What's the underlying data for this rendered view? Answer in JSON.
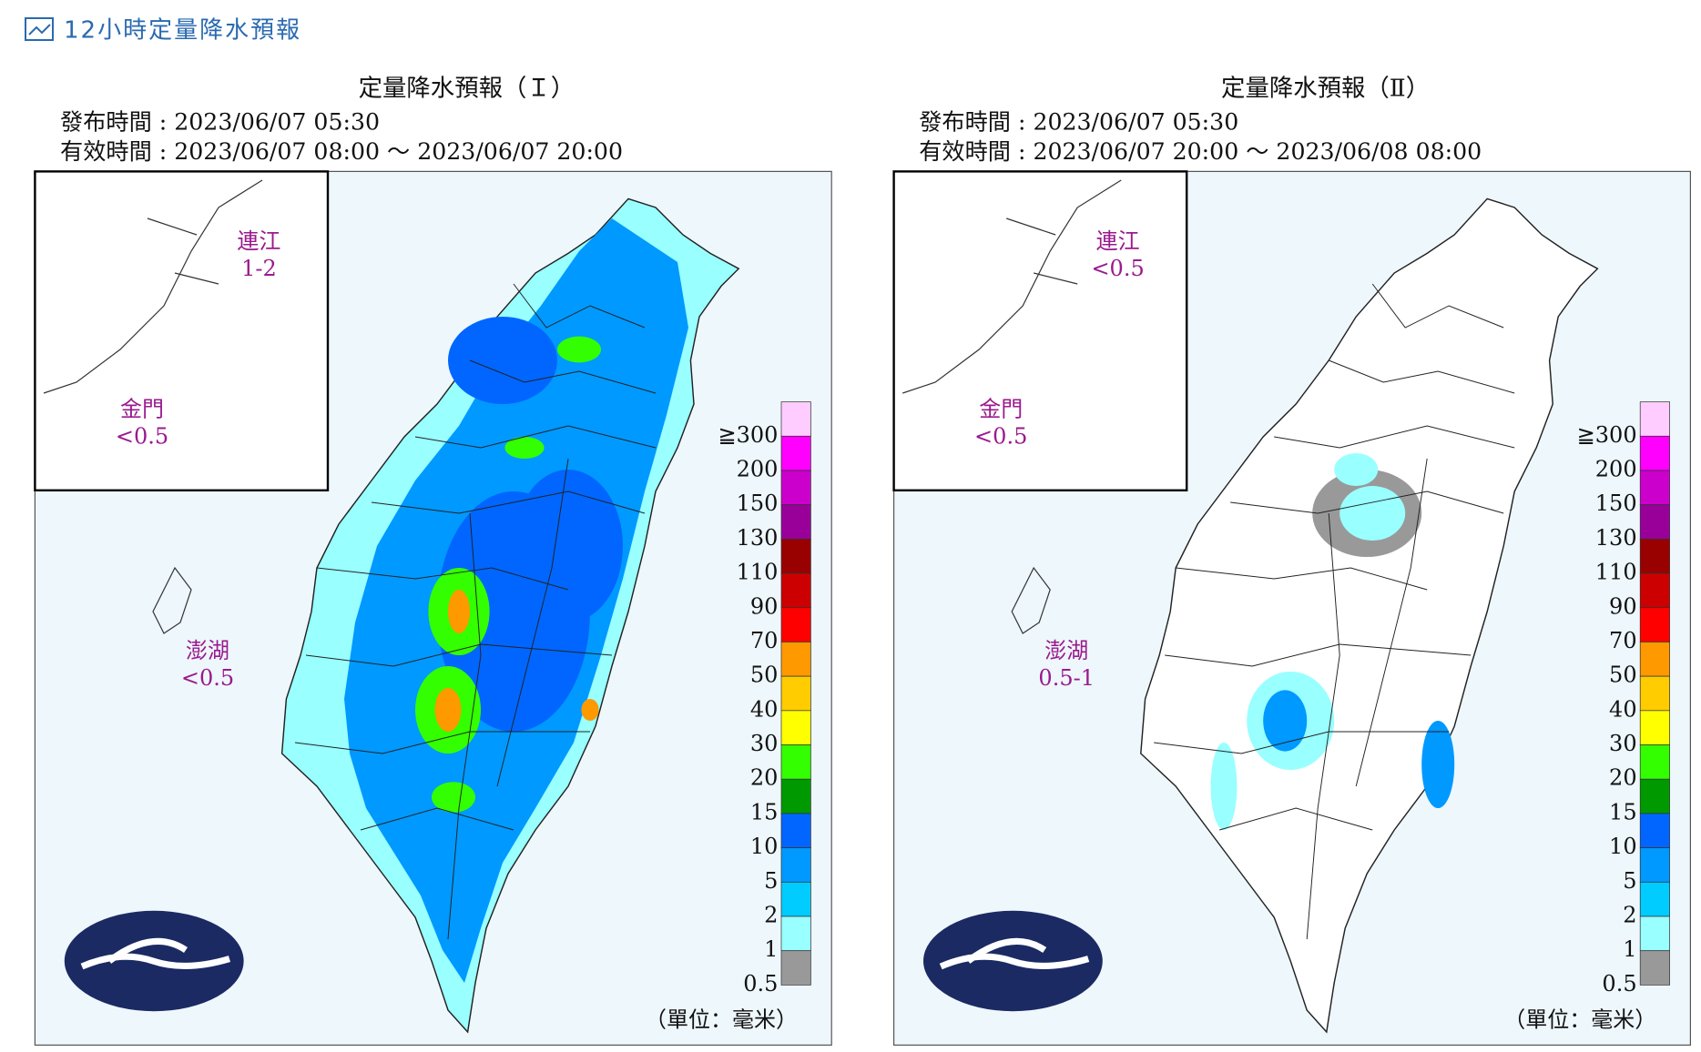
{
  "header": {
    "title": "12小時定量降水預報"
  },
  "legend": [
    {
      "label": "≧300",
      "color": "#ffccff"
    },
    {
      "label": "200",
      "color": "#ff00ff"
    },
    {
      "label": "150",
      "color": "#cc00cc"
    },
    {
      "label": "130",
      "color": "#990099"
    },
    {
      "label": "110",
      "color": "#990000"
    },
    {
      "label": "90",
      "color": "#cc0000"
    },
    {
      "label": "70",
      "color": "#ff0000"
    },
    {
      "label": "50",
      "color": "#ff9900"
    },
    {
      "label": "40",
      "color": "#ffcc00"
    },
    {
      "label": "30",
      "color": "#ffff00"
    },
    {
      "label": "20",
      "color": "#33ff00"
    },
    {
      "label": "15",
      "color": "#009900"
    },
    {
      "label": "10",
      "color": "#0066ff"
    },
    {
      "label": "5",
      "color": "#0099ff"
    },
    {
      "label": "2",
      "color": "#00ccff"
    },
    {
      "label": "1",
      "color": "#99ffff"
    },
    {
      "label": "0.5",
      "color": "#999999"
    }
  ],
  "unit": "（單位：毫米）",
  "panels": [
    {
      "title": "定量降水預報（Ｉ）",
      "issued": "發布時間 : 2023/06/07 05:30",
      "valid": "有效時間 : 2023/06/07 08:00 ～ 2023/06/07 20:00",
      "regions": [
        {
          "name": "連江",
          "value": "1-2"
        },
        {
          "name": "金門",
          "value": "<0.5"
        },
        {
          "name": "澎湖",
          "value": "<0.5"
        }
      ]
    },
    {
      "title": "定量降水預報（Ⅱ）",
      "issued": "發布時間 : 2023/06/07 05:30",
      "valid": "有效時間 : 2023/06/07 20:00 ～ 2023/06/08 08:00",
      "regions": [
        {
          "name": "連江",
          "value": "<0.5"
        },
        {
          "name": "金門",
          "value": "<0.5"
        },
        {
          "name": "澎湖",
          "value": "0.5-1"
        }
      ]
    }
  ]
}
